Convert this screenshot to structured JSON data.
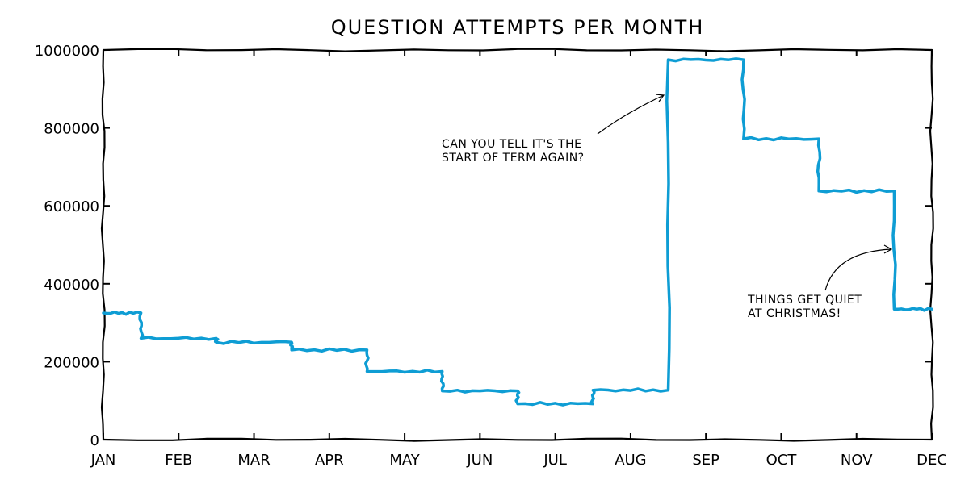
{
  "chart_data": {
    "type": "line",
    "drawstyle": "steps",
    "title": "QUESTION ATTEMPTS PER MONTH",
    "xlabel": "",
    "ylabel": "",
    "categories": [
      "JAN",
      "FEB",
      "MAR",
      "APR",
      "MAY",
      "JUN",
      "JUL",
      "AUG",
      "SEP",
      "OCT",
      "NOV",
      "DEC"
    ],
    "ylim": [
      0,
      1000000
    ],
    "yticks": [
      "0",
      "200000",
      "400000",
      "600000",
      "800000",
      "1000000"
    ],
    "style": "xkcd",
    "grid": false,
    "legend": "none",
    "series": [
      {
        "color": "#0e9dd4",
        "points": [
          {
            "x": "JAN",
            "y": 325000
          },
          {
            "x": "JAN-FEB",
            "y": 260000
          },
          {
            "x": "FEB-MAR",
            "y": 250000
          },
          {
            "x": "MAR-APR",
            "y": 230000
          },
          {
            "x": "APR-MAY",
            "y": 175000
          },
          {
            "x": "MAY-JUN",
            "y": 125000
          },
          {
            "x": "JUN-JUL",
            "y": 92000
          },
          {
            "x": "JUL-AUG",
            "y": 127000
          },
          {
            "x": "AUG-SEP",
            "y": 975000
          },
          {
            "x": "SEP-OCT",
            "y": 772000
          },
          {
            "x": "OCT-NOV",
            "y": 638000
          },
          {
            "x": "NOV-DEC",
            "y": 335000
          }
        ]
      }
    ],
    "annotations": [
      {
        "text_lines": [
          "CAN YOU TELL IT'S THE",
          "START OF TERM AGAIN?"
        ],
        "points_to": "AUG-SEP"
      },
      {
        "text_lines": [
          "THINGS GET QUIET",
          "AT CHRISTMAS!"
        ],
        "points_to": "NOV-DEC"
      }
    ]
  }
}
